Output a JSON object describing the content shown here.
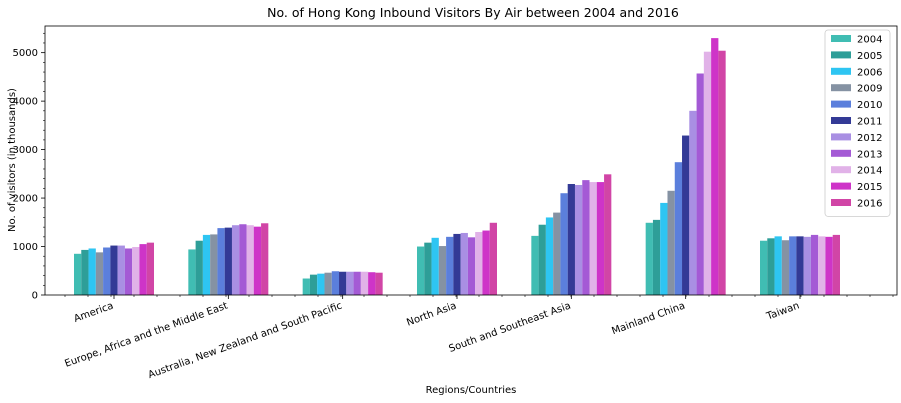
{
  "chart_data": {
    "type": "bar",
    "title": "No. of Hong Kong Inbound Visitors By Air between 2004 and 2016",
    "xlabel": "Regions/Countries",
    "ylabel": "No. of visitors (in thousands)",
    "ylim": [
      0,
      5550
    ],
    "yticks": [
      0,
      1000,
      2000,
      3000,
      4000,
      5000
    ],
    "ytick_labels": [
      "0",
      "1000",
      "2000",
      "3000",
      "4000",
      "5000"
    ],
    "grid": false,
    "legend_position": "top-right",
    "categories": [
      "America",
      "Europe, Africa and the Middle East",
      "Australia, New Zealand and South Pacific",
      "North Asia",
      "South and Southeast Asia",
      "Mainland China",
      "Taiwan"
    ],
    "series": [
      {
        "name": "2004",
        "color": "#40bdb3",
        "values": [
          850,
          940,
          340,
          1000,
          1220,
          1490,
          1120
        ]
      },
      {
        "name": "2005",
        "color": "#2e9e98",
        "values": [
          930,
          1120,
          420,
          1080,
          1450,
          1550,
          1170
        ]
      },
      {
        "name": "2006",
        "color": "#2ec5f2",
        "values": [
          960,
          1240,
          440,
          1180,
          1600,
          1900,
          1210
        ]
      },
      {
        "name": "2009",
        "color": "#8592a3",
        "values": [
          880,
          1250,
          460,
          1010,
          1700,
          2150,
          1130
        ]
      },
      {
        "name": "2010",
        "color": "#5b7fdc",
        "values": [
          980,
          1380,
          490,
          1200,
          2100,
          2740,
          1210
        ]
      },
      {
        "name": "2011",
        "color": "#333a96",
        "values": [
          1020,
          1390,
          480,
          1260,
          2290,
          3290,
          1210
        ]
      },
      {
        "name": "2012",
        "color": "#a98fe3",
        "values": [
          1020,
          1440,
          480,
          1280,
          2270,
          3800,
          1200
        ]
      },
      {
        "name": "2013",
        "color": "#a45ad5",
        "values": [
          960,
          1460,
          480,
          1190,
          2370,
          4570,
          1240
        ]
      },
      {
        "name": "2014",
        "color": "#e1b2e8",
        "values": [
          990,
          1440,
          480,
          1300,
          2330,
          5020,
          1210
        ]
      },
      {
        "name": "2015",
        "color": "#ce34c8",
        "values": [
          1050,
          1410,
          470,
          1330,
          2330,
          5300,
          1200
        ]
      },
      {
        "name": "2016",
        "color": "#d145a6",
        "values": [
          1080,
          1480,
          460,
          1490,
          2490,
          5040,
          1240
        ]
      }
    ]
  }
}
